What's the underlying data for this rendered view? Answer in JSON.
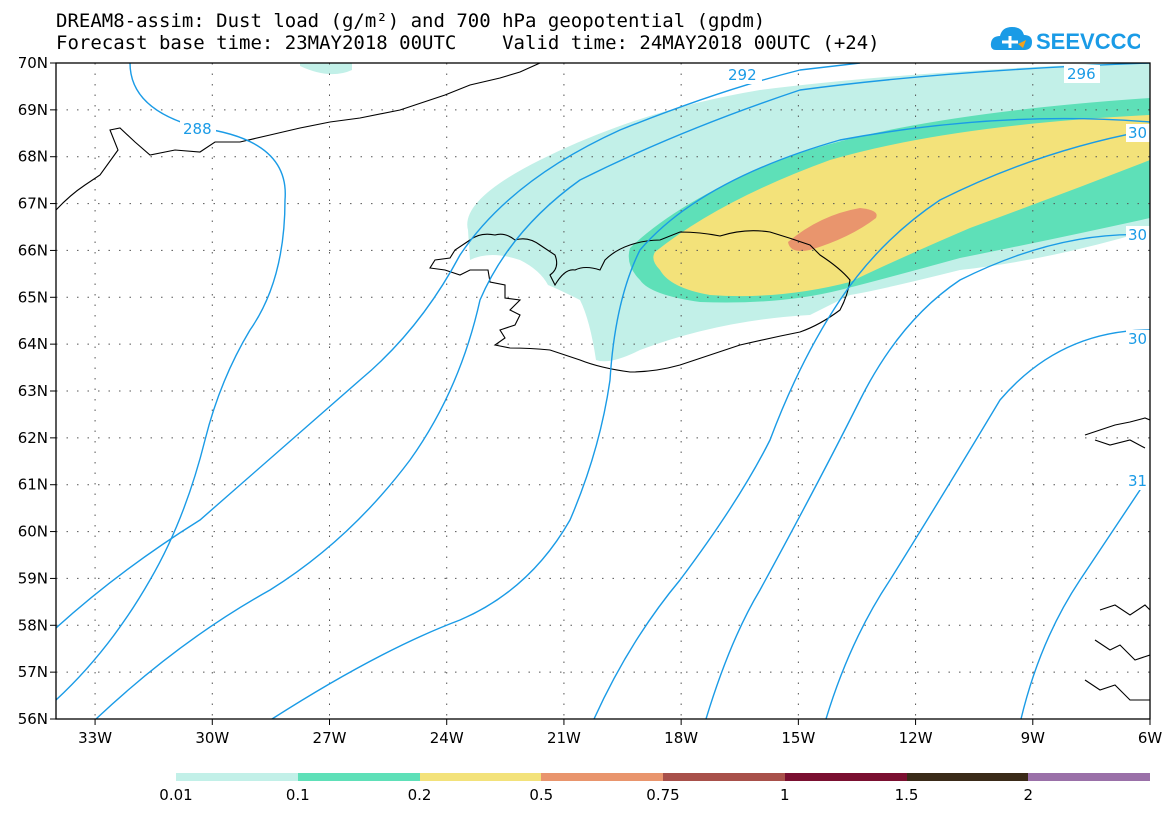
{
  "title": {
    "line1": "DREAM8-assim: Dust load (g/m²) and 700 hPa geopotential (gpdm)",
    "line2": "Forecast base time: 23MAY2018 00UTC    Valid time: 24MAY2018 00UTC (+24)"
  },
  "logo": {
    "text": "SEEVCCC",
    "icon": "cloud-icon",
    "color": "#1a9be6"
  },
  "lat_labels": [
    "70N",
    "69N",
    "68N",
    "67N",
    "66N",
    "65N",
    "64N",
    "63N",
    "62N",
    "61N",
    "60N",
    "59N",
    "58N",
    "57N",
    "56N"
  ],
  "lon_labels": [
    "33W",
    "30W",
    "27W",
    "24W",
    "21W",
    "18W",
    "15W",
    "12W",
    "9W",
    "6W"
  ],
  "contour_labels": [
    "288",
    "292",
    "296",
    "30",
    "30",
    "30",
    "31"
  ],
  "colorbar": {
    "colors": [
      "#c2f0e8",
      "#5ee0b8",
      "#f3e27a",
      "#e9956d",
      "#a8504a",
      "#7a0f30",
      "#3a2a18",
      "#9a70a8"
    ],
    "labels": [
      "0.01",
      "0.1",
      "0.2",
      "0.5",
      "0.75",
      "1",
      "1.5",
      "2"
    ]
  },
  "colors": {
    "contour": "#1a9be6",
    "coast": "#000000",
    "grid": "#555555"
  }
}
